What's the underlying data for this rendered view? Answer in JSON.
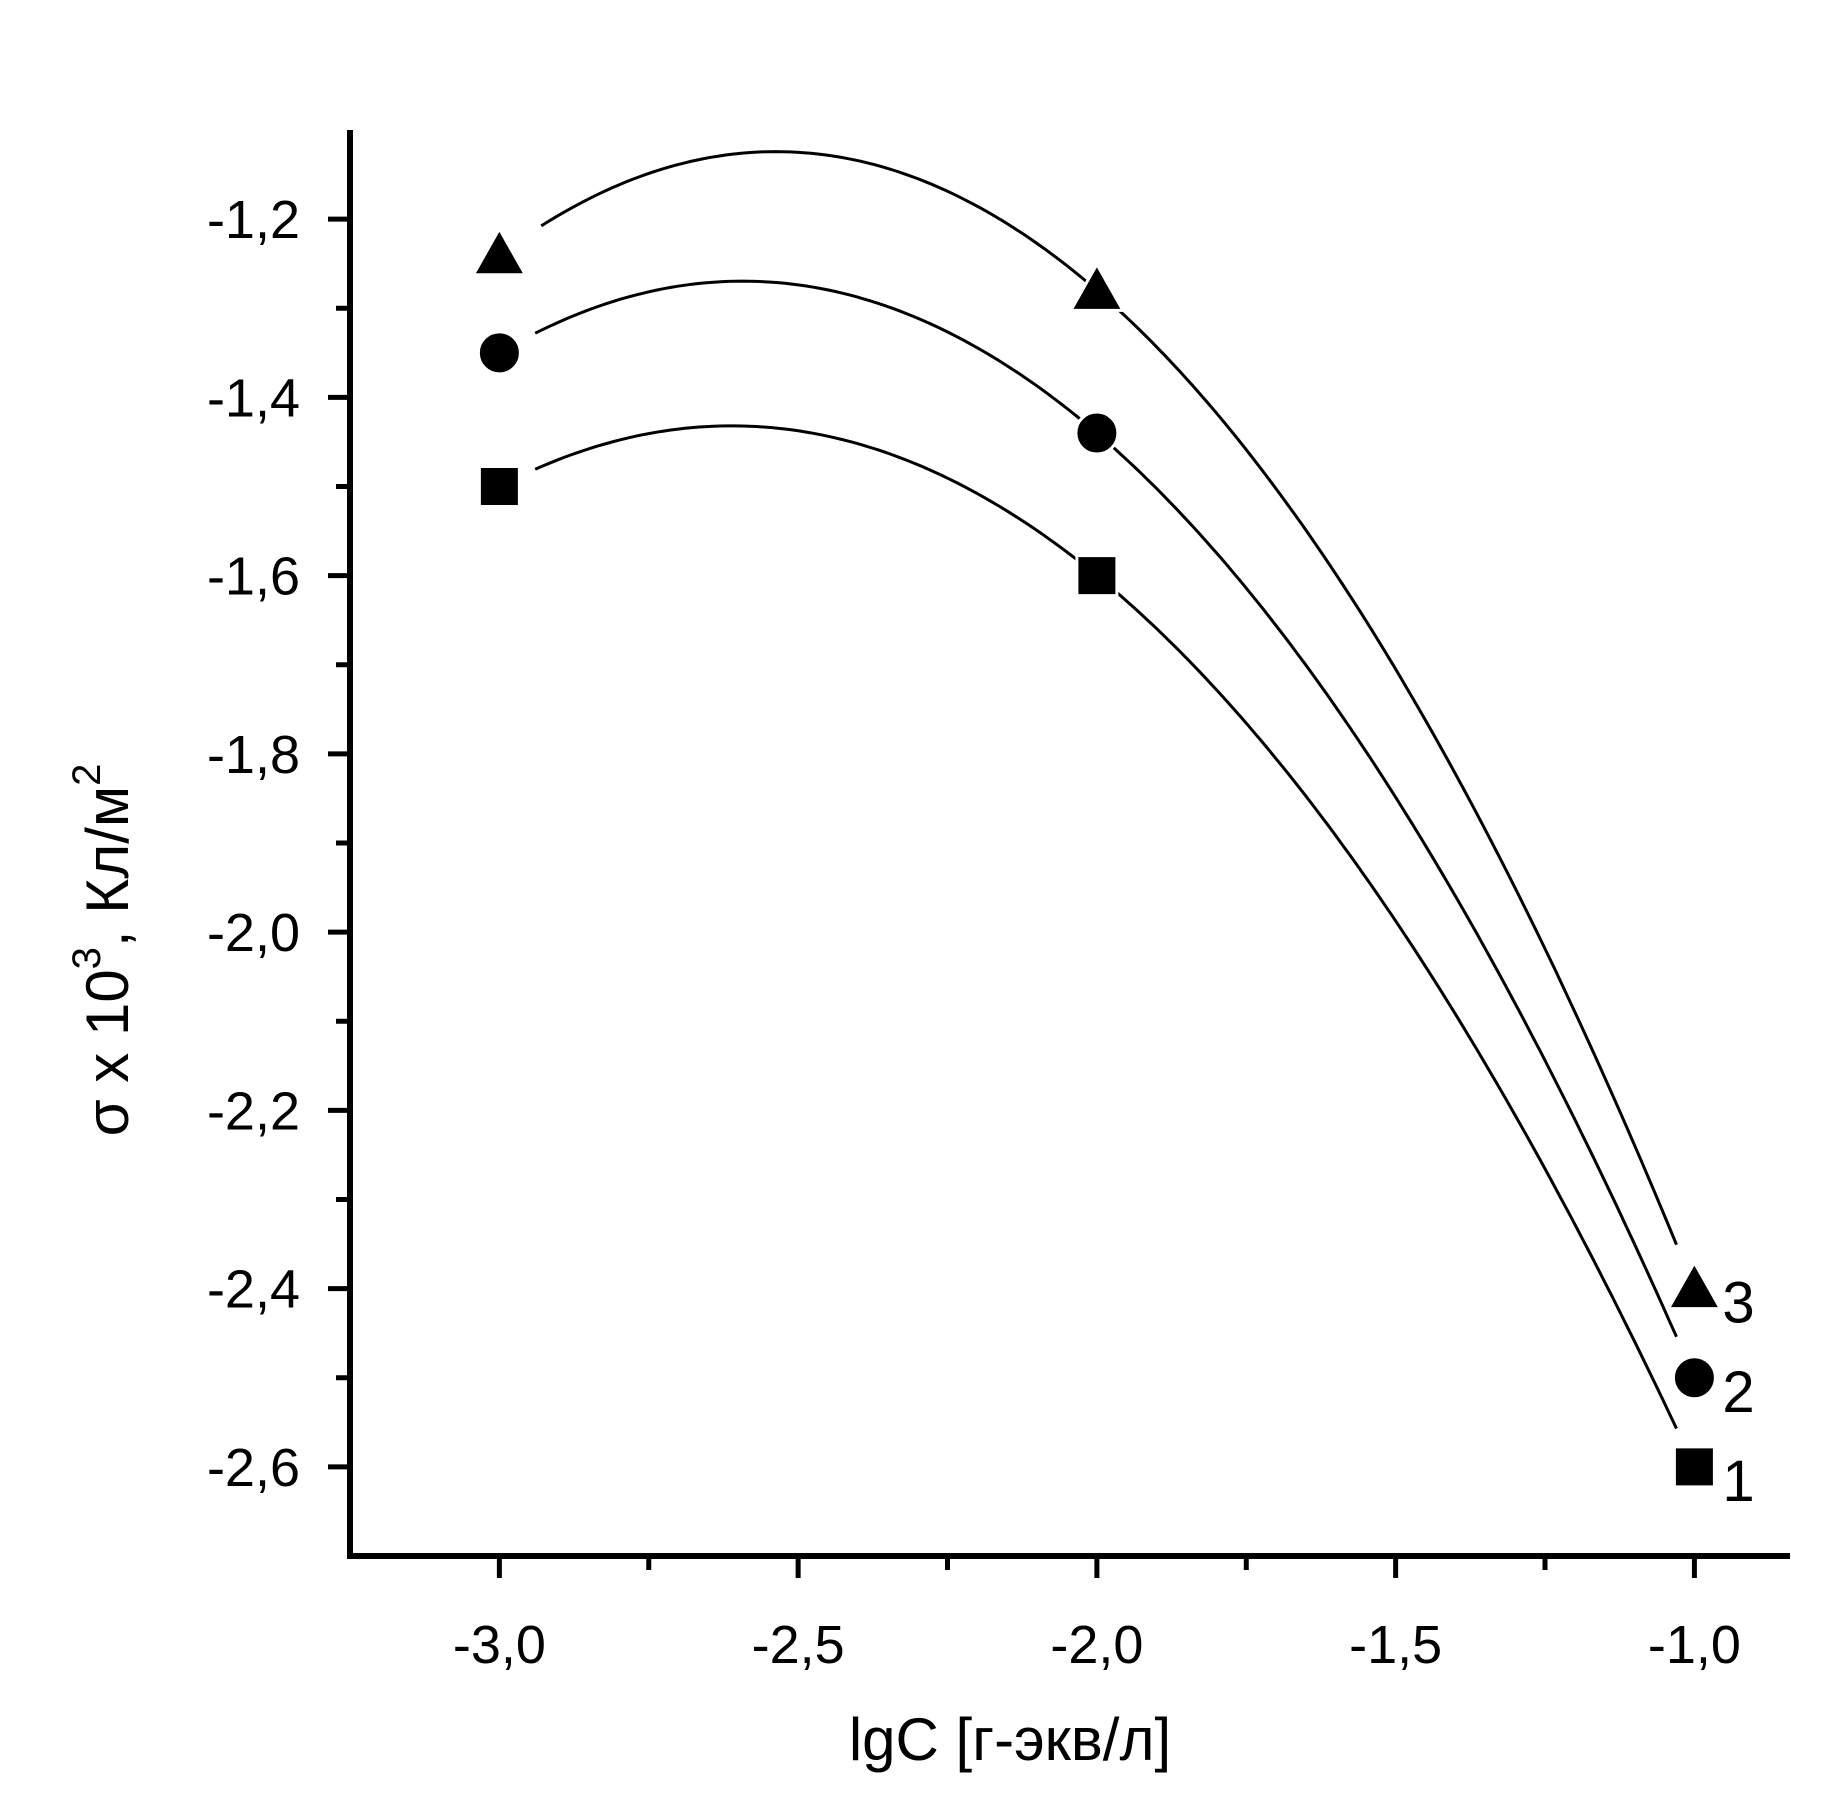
{
  "chart_data": {
    "type": "line",
    "title": "",
    "xlabel": "lgC [г-экв/л]",
    "ylabel": {
      "main": "σ x 10",
      "exponent": "3",
      "unit": ", Кл/м",
      "unit_exponent": "2"
    },
    "xlim": [
      -3.25,
      -0.84
    ],
    "ylim": [
      -2.7,
      -1.1
    ],
    "x_ticks": [
      {
        "value": -3.0,
        "label": "-3,0"
      },
      {
        "value": -2.5,
        "label": "-2,5"
      },
      {
        "value": -2.0,
        "label": "-2,0"
      },
      {
        "value": -1.5,
        "label": "-1,5"
      },
      {
        "value": -1.0,
        "label": "-1,0"
      }
    ],
    "x_minor_ticks": [
      -2.75,
      -2.25,
      -1.75,
      -1.25
    ],
    "y_ticks": [
      {
        "value": -1.2,
        "label": "-1,2"
      },
      {
        "value": -1.4,
        "label": "-1,4"
      },
      {
        "value": -1.6,
        "label": "-1,6"
      },
      {
        "value": -1.8,
        "label": "-1,8"
      },
      {
        "value": -2.0,
        "label": "-2,0"
      },
      {
        "value": -2.2,
        "label": "-2,2"
      },
      {
        "value": -2.4,
        "label": "-2,4"
      },
      {
        "value": -2.6,
        "label": "-2,6"
      }
    ],
    "y_minor_ticks": [
      -1.3,
      -1.5,
      -1.7,
      -1.9,
      -2.1,
      -2.3,
      -2.5
    ],
    "grid": false,
    "legend": "none",
    "x": [
      -3.0,
      -2.0,
      -1.0
    ],
    "series": [
      {
        "name": "1",
        "marker": "square",
        "values": [
          -1.5,
          -1.6,
          -2.6
        ]
      },
      {
        "name": "2",
        "marker": "circle",
        "values": [
          -1.35,
          -1.44,
          -2.5
        ]
      },
      {
        "name": "3",
        "marker": "triangle",
        "values": [
          -1.24,
          -1.28,
          -2.4
        ]
      }
    ]
  }
}
